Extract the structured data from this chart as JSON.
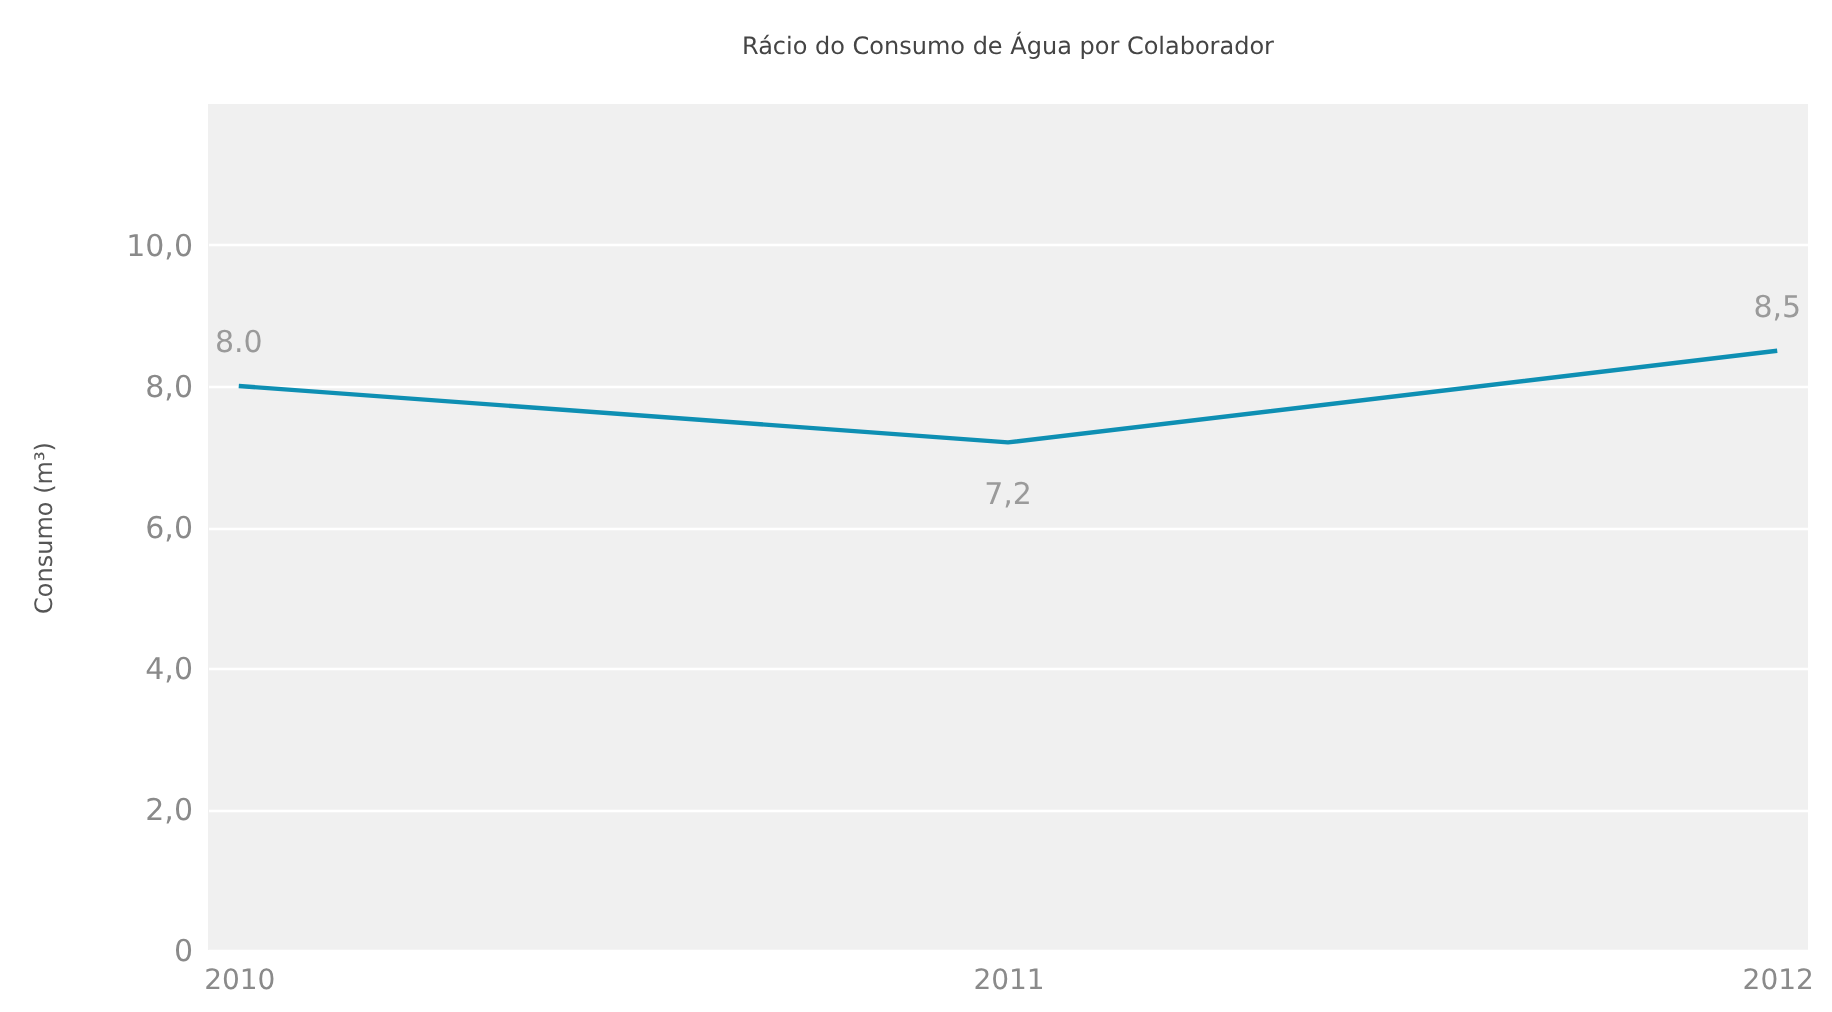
{
  "chart_data": {
    "type": "line",
    "title": "Rácio do Consumo de Água por Colaborador",
    "ylabel": "Consumo (m³)",
    "categories": [
      "2010",
      "2011",
      "2012"
    ],
    "series": [
      {
        "color": "#0e8fb3",
        "values": [
          8.0,
          7.2,
          8.5
        ],
        "value_labels": [
          "8.0",
          "7,2",
          "8,5"
        ]
      }
    ],
    "ylim": [
      0,
      12
    ],
    "yticks": [
      0,
      {
        "value": 2,
        "label": "2,0"
      },
      {
        "value": 4,
        "label": "4,0"
      },
      {
        "value": 6,
        "label": "6,0"
      },
      {
        "value": 8,
        "label": "8,0"
      },
      {
        "value": 10,
        "label": "10,0"
      }
    ],
    "grid": "y",
    "marker": "none",
    "line_style": "solid"
  }
}
